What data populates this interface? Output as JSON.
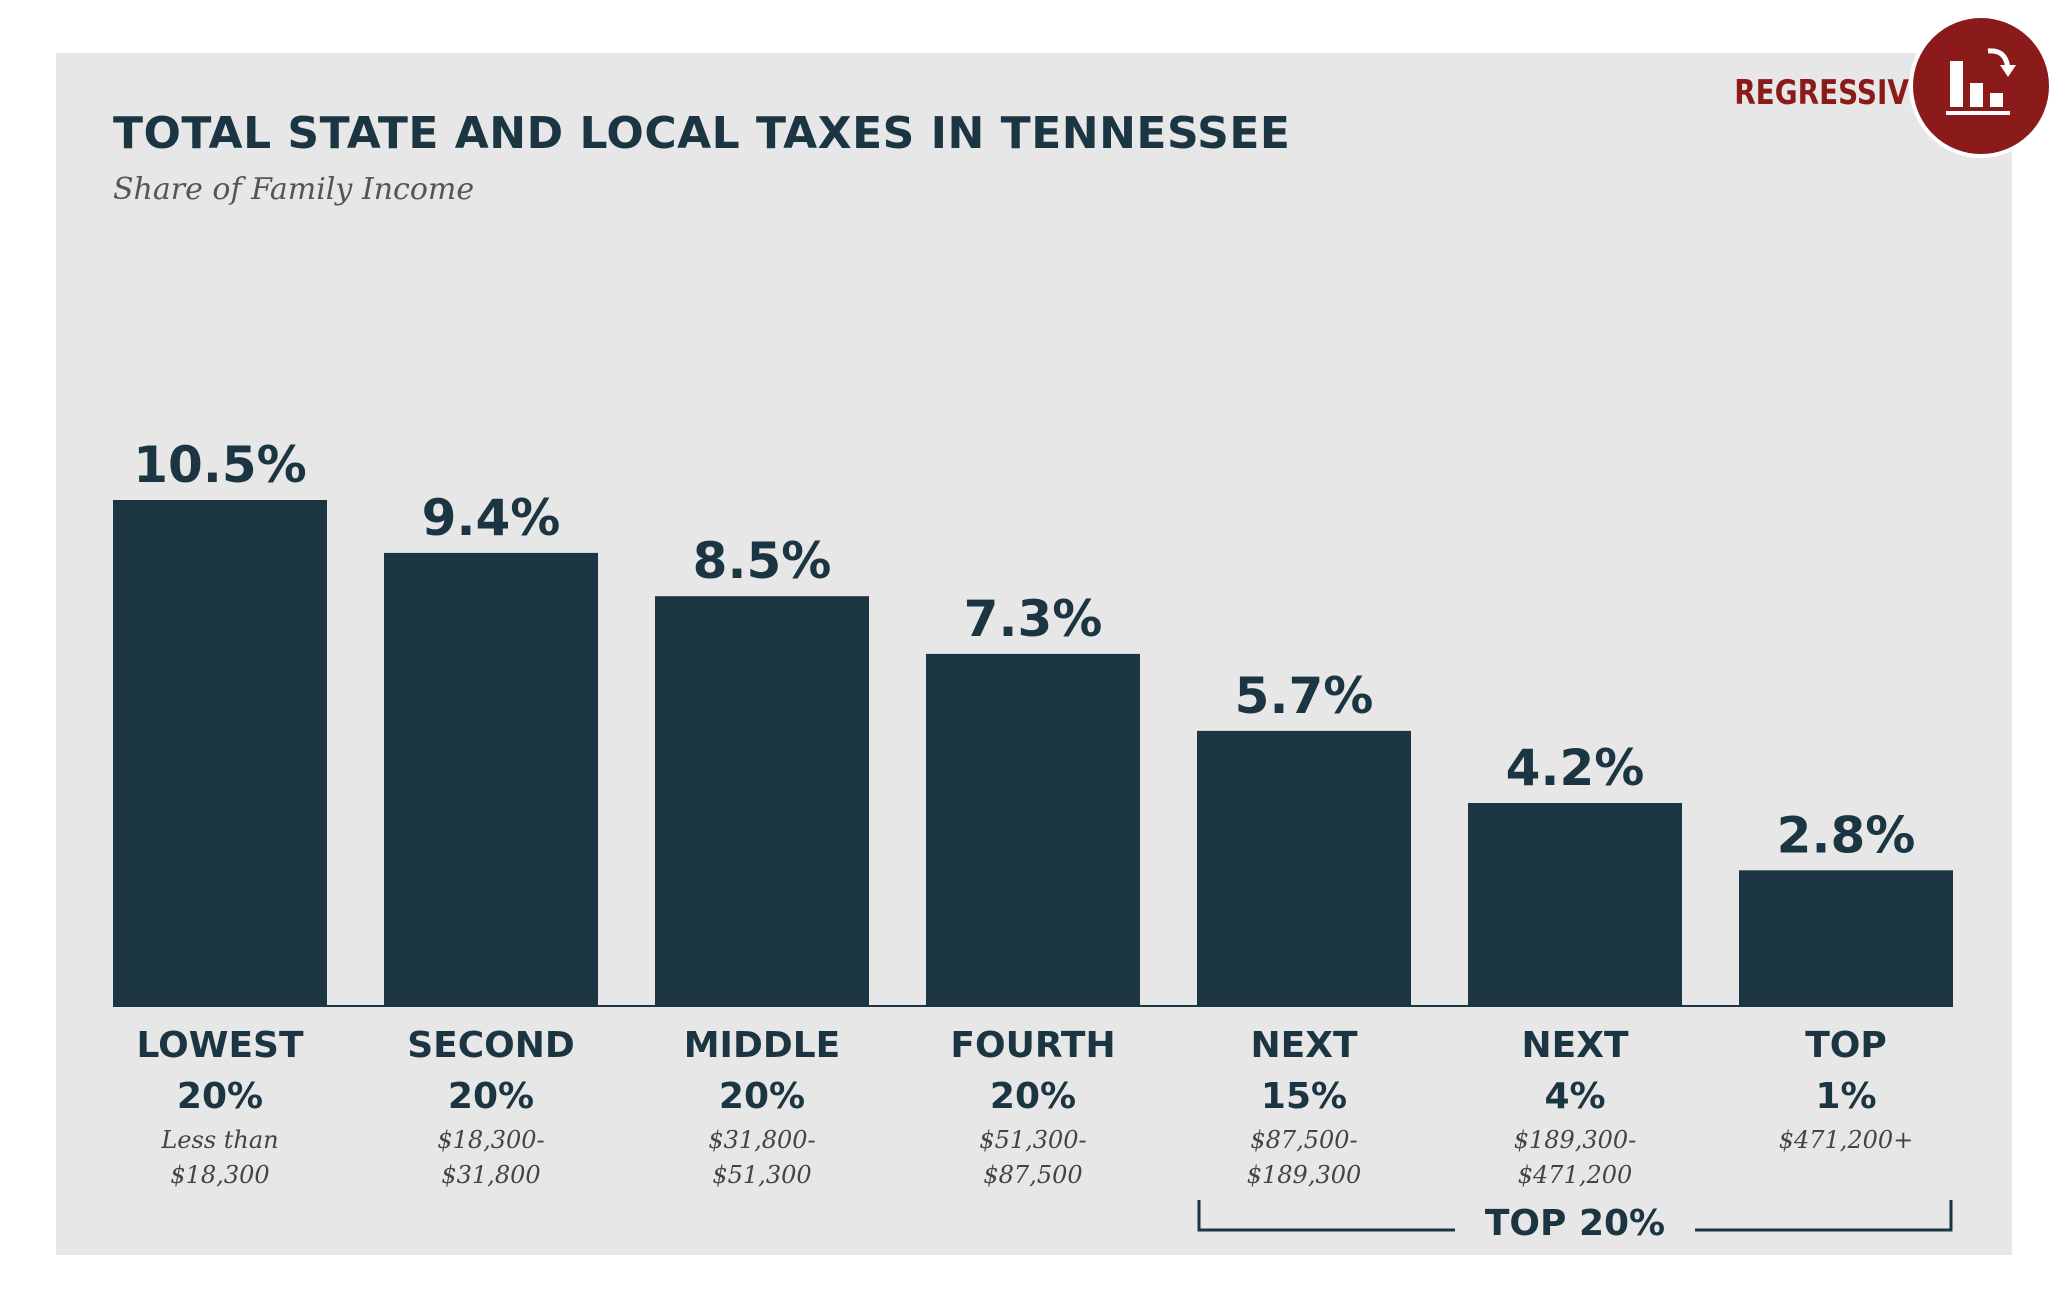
{
  "header": {
    "title": "TOTAL STATE AND LOCAL TAXES IN TENNESSEE",
    "subtitle": "Share of Family Income"
  },
  "badge": {
    "label": "REGRESSIVE",
    "icon": "regressive-bar-chart-icon"
  },
  "colors": {
    "bar": "#1b3542",
    "badge": "#8b1a1a",
    "panel": "#e7e7e7"
  },
  "chart_data": {
    "type": "bar",
    "title": "TOTAL STATE AND LOCAL TAXES IN TENNESSEE",
    "subtitle": "Share of Family Income",
    "unit": "%",
    "ylim": [
      0,
      10.5
    ],
    "grid": false,
    "categories": [
      {
        "line1": "LOWEST",
        "line2": "20%",
        "range1": "Less than",
        "range2": "$18,300"
      },
      {
        "line1": "SECOND",
        "line2": "20%",
        "range1": "$18,300-",
        "range2": "$31,800"
      },
      {
        "line1": "MIDDLE",
        "line2": "20%",
        "range1": "$31,800-",
        "range2": "$51,300"
      },
      {
        "line1": "FOURTH",
        "line2": "20%",
        "range1": "$51,300-",
        "range2": "$87,500"
      },
      {
        "line1": "NEXT",
        "line2": "15%",
        "range1": "$87,500-",
        "range2": "$189,300"
      },
      {
        "line1": "NEXT",
        "line2": "4%",
        "range1": "$189,300-",
        "range2": "$471,200"
      },
      {
        "line1": "TOP",
        "line2": "1%",
        "range1": "$471,200+",
        "range2": ""
      }
    ],
    "values": [
      10.5,
      9.4,
      8.5,
      7.3,
      5.7,
      4.2,
      2.8
    ],
    "value_labels": [
      "10.5%",
      "9.4%",
      "8.5%",
      "7.3%",
      "5.7%",
      "4.2%",
      "2.8%"
    ],
    "bracket": {
      "label": "TOP 20%",
      "from_index": 4,
      "to_index": 6
    }
  }
}
